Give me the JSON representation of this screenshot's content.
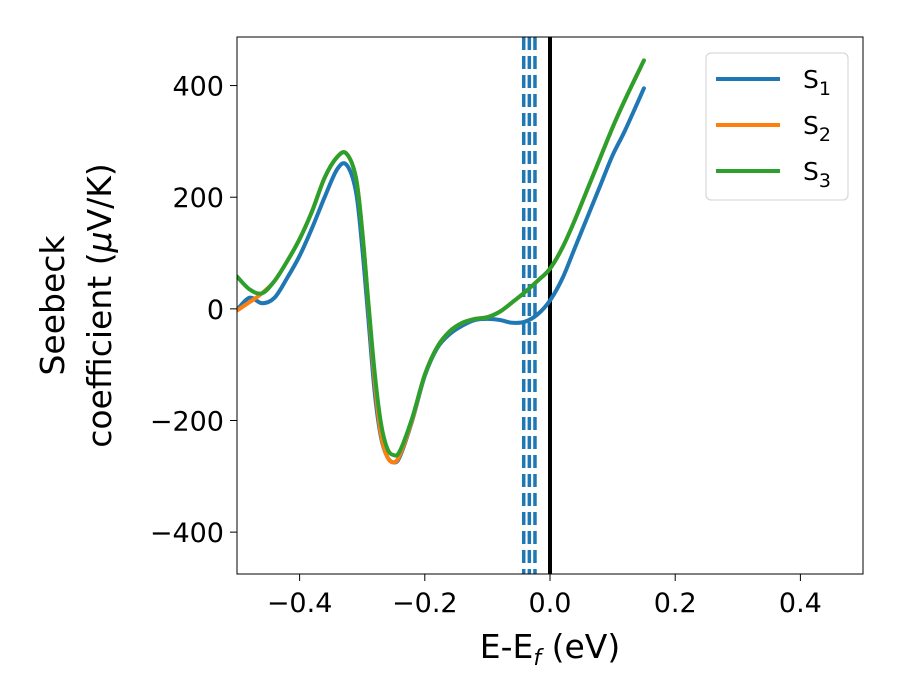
{
  "chart_data": {
    "type": "line",
    "xlabel": {
      "main": "E-E",
      "sub": "f",
      "suffix": " (eV)"
    },
    "ylabel": {
      "line1": "Seebeck",
      "line2_pre": "coefficient  (",
      "line2_mu": "μ",
      "line2_post": "V/K)"
    },
    "xlim": [
      -0.5,
      0.5
    ],
    "ylim": [
      -475,
      487
    ],
    "xticks": [
      -0.4,
      -0.2,
      0.0,
      0.2,
      0.4
    ],
    "xtick_labels": [
      "−0.4",
      "−0.2",
      "0.0",
      "0.2",
      "0.4"
    ],
    "yticks": [
      -400,
      -200,
      0,
      200,
      400
    ],
    "ytick_labels": [
      "−400",
      "−200",
      "0",
      "200",
      "400"
    ],
    "grid": false,
    "legend_position": "top-right",
    "vlines": [
      {
        "x": 0.0,
        "style": "solid",
        "color": "#000000"
      },
      {
        "x": -0.042,
        "style": "dashed",
        "color": "#1f77b4"
      },
      {
        "x": -0.033,
        "style": "dashed",
        "color": "#1f77b4"
      },
      {
        "x": -0.024,
        "style": "dashed",
        "color": "#1f77b4"
      }
    ],
    "series": [
      {
        "name": "S",
        "sub": "1",
        "color": "#1f77b4",
        "x": [
          -0.5,
          -0.48,
          -0.46,
          -0.44,
          -0.42,
          -0.4,
          -0.38,
          -0.36,
          -0.34,
          -0.325,
          -0.31,
          -0.3,
          -0.29,
          -0.28,
          -0.27,
          -0.26,
          -0.25,
          -0.24,
          -0.22,
          -0.2,
          -0.18,
          -0.16,
          -0.14,
          -0.12,
          -0.1,
          -0.08,
          -0.06,
          -0.04,
          -0.02,
          0.0,
          0.02,
          0.04,
          0.06,
          0.08,
          0.1,
          0.12,
          0.15
        ],
        "y": [
          -2,
          20,
          10,
          20,
          55,
          95,
          145,
          200,
          250,
          258,
          210,
          110,
          -20,
          -150,
          -230,
          -265,
          -275,
          -265,
          -200,
          -120,
          -70,
          -45,
          -30,
          -20,
          -18,
          -20,
          -25,
          -23,
          -10,
          15,
          55,
          110,
          165,
          220,
          275,
          320,
          395
        ]
      },
      {
        "name": "S",
        "sub": "2",
        "color": "#ff7f0e",
        "x": [
          -0.5,
          -0.48,
          -0.46,
          -0.44,
          -0.42,
          -0.4,
          -0.38,
          -0.36,
          -0.34,
          -0.325,
          -0.31,
          -0.3,
          -0.29,
          -0.28,
          -0.27,
          -0.26,
          -0.25,
          -0.24,
          -0.22,
          -0.2,
          -0.18,
          -0.16,
          -0.14,
          -0.12,
          -0.1,
          -0.08,
          -0.06,
          -0.04,
          -0.02,
          0.0,
          0.02,
          0.04,
          0.06,
          0.08,
          0.1,
          0.12,
          0.15
        ],
        "y": [
          -3,
          12,
          28,
          50,
          85,
          125,
          175,
          235,
          272,
          278,
          235,
          140,
          5,
          -130,
          -225,
          -265,
          -275,
          -262,
          -198,
          -118,
          -68,
          -40,
          -25,
          -18,
          -15,
          -5,
          12,
          30,
          50,
          72,
          110,
          160,
          215,
          270,
          325,
          375,
          445
        ]
      },
      {
        "name": "S",
        "sub": "3",
        "color": "#2ca02c",
        "x": [
          -0.5,
          -0.48,
          -0.46,
          -0.44,
          -0.42,
          -0.4,
          -0.38,
          -0.36,
          -0.34,
          -0.325,
          -0.31,
          -0.3,
          -0.29,
          -0.28,
          -0.27,
          -0.26,
          -0.25,
          -0.24,
          -0.22,
          -0.2,
          -0.18,
          -0.16,
          -0.14,
          -0.12,
          -0.1,
          -0.08,
          -0.06,
          -0.04,
          -0.02,
          0.0,
          0.02,
          0.04,
          0.06,
          0.08,
          0.1,
          0.12,
          0.15
        ],
        "y": [
          58,
          35,
          28,
          50,
          85,
          125,
          175,
          235,
          272,
          278,
          235,
          140,
          10,
          -115,
          -205,
          -250,
          -262,
          -255,
          -195,
          -118,
          -68,
          -40,
          -25,
          -18,
          -15,
          -5,
          12,
          30,
          50,
          72,
          110,
          160,
          215,
          270,
          325,
          375,
          445
        ]
      }
    ]
  }
}
